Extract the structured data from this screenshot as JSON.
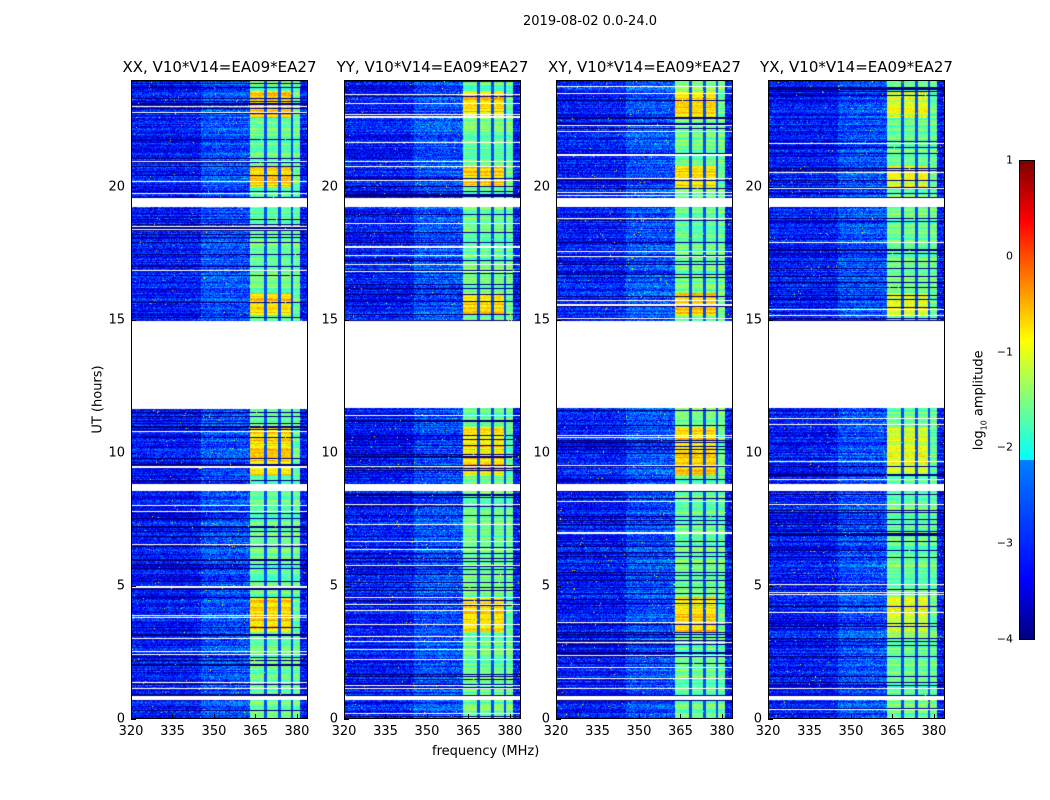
{
  "chart_data": {
    "type": "heatmap",
    "suptitle": "2019-08-02 0.0-24.0",
    "panels": [
      {
        "title": "XX, V10*V14=EA09*EA27",
        "seed": 1
      },
      {
        "title": "YY, V10*V14=EA09*EA27",
        "seed": 2
      },
      {
        "title": "XY, V10*V14=EA09*EA27",
        "seed": 3
      },
      {
        "title": "YX, V10*V14=EA09*EA27",
        "seed": 4
      }
    ],
    "xlabel": "frequency (MHz)",
    "ylabel": "UT (hours)",
    "xlim": [
      320,
      384
    ],
    "ylim": [
      0,
      24
    ],
    "xticks": [
      320,
      335,
      350,
      365,
      380
    ],
    "xtick_labels": [
      "320",
      "335",
      "350",
      "365",
      "380"
    ],
    "yticks": [
      0,
      5,
      10,
      15,
      20
    ],
    "ytick_labels": [
      "0",
      "5",
      "10",
      "15",
      "20"
    ],
    "band_mhz": [
      363,
      381
    ],
    "subband_edges_mhz": [
      368.5,
      373.5,
      378
    ],
    "flagged_hours": [
      [
        0.72,
        0.9
      ],
      [
        8.6,
        8.85
      ],
      [
        11.7,
        14.95
      ],
      [
        19.25,
        19.6
      ]
    ],
    "bright_hours": [
      [
        3.3,
        4.6
      ],
      [
        9.2,
        11.0
      ],
      [
        15.2,
        16.0
      ],
      [
        20.0,
        20.8
      ],
      [
        22.6,
        23.6
      ]
    ],
    "colorbar": {
      "label": "log10 amplitude",
      "clim": [
        -4,
        1
      ],
      "ticks": [
        1,
        0,
        -1,
        -2,
        -3,
        -4
      ],
      "tick_labels": [
        "1",
        "0",
        "−1",
        "−2",
        "−3",
        "−4"
      ],
      "colormap": "jet"
    }
  }
}
